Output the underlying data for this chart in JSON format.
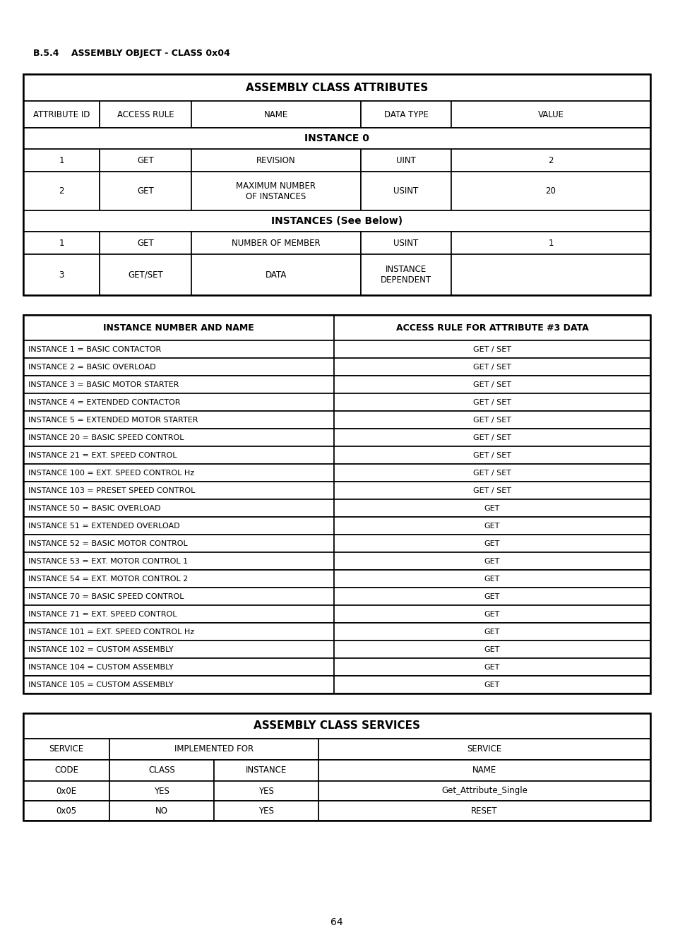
{
  "page_title": "B.5.4    ASSEMBLY OBJECT - CLASS 0x04",
  "page_number": "64",
  "background_color": "#ffffff",
  "table1_title": "ASSEMBLY CLASS ATTRIBUTES",
  "table1_headers": [
    "ATTRIBUTE ID",
    "ACCESS RULE",
    "NAME",
    "DATA TYPE",
    "VALUE"
  ],
  "table2_headers": [
    "INSTANCE NUMBER AND NAME",
    "ACCESS RULE FOR ATTRIBUTE #3 DATA"
  ],
  "table2_rows": [
    [
      "INSTANCE 1 = BASIC CONTACTOR",
      "GET / SET"
    ],
    [
      "INSTANCE 2 = BASIC OVERLOAD",
      "GET / SET"
    ],
    [
      "INSTANCE 3 = BASIC MOTOR STARTER",
      "GET / SET"
    ],
    [
      "INSTANCE 4 = EXTENDED CONTACTOR",
      "GET / SET"
    ],
    [
      "INSTANCE 5 = EXTENDED MOTOR STARTER",
      "GET / SET"
    ],
    [
      "INSTANCE 20 = BASIC SPEED CONTROL",
      "GET / SET"
    ],
    [
      "INSTANCE 21 = EXT. SPEED CONTROL",
      "GET / SET"
    ],
    [
      "INSTANCE 100 = EXT. SPEED CONTROL Hz",
      "GET / SET"
    ],
    [
      "INSTANCE 103 = PRESET SPEED CONTROL",
      "GET / SET"
    ],
    [
      "INSTANCE 50 = BASIC OVERLOAD",
      "GET"
    ],
    [
      "INSTANCE 51 = EXTENDED OVERLOAD",
      "GET"
    ],
    [
      "INSTANCE 52 = BASIC MOTOR CONTROL",
      "GET"
    ],
    [
      "INSTANCE 53 = EXT. MOTOR CONTROL 1",
      "GET"
    ],
    [
      "INSTANCE 54 = EXT. MOTOR CONTROL 2",
      "GET"
    ],
    [
      "INSTANCE 70 = BASIC SPEED CONTROL",
      "GET"
    ],
    [
      "INSTANCE 71 = EXT. SPEED CONTROL",
      "GET"
    ],
    [
      "INSTANCE 101 = EXT. SPEED CONTROL Hz",
      "GET"
    ],
    [
      "INSTANCE 102 = CUSTOM ASSEMBLY",
      "GET"
    ],
    [
      "INSTANCE 104 = CUSTOM ASSEMBLY",
      "GET"
    ],
    [
      "INSTANCE 105 = CUSTOM ASSEMBLY",
      "GET"
    ]
  ],
  "table3_title": "ASSEMBLY CLASS SERVICES",
  "table3_rows": [
    [
      "0x0E",
      "YES",
      "YES",
      "Get_Attribute_Single"
    ],
    [
      "0x05",
      "NO",
      "YES",
      "RESET"
    ]
  ]
}
